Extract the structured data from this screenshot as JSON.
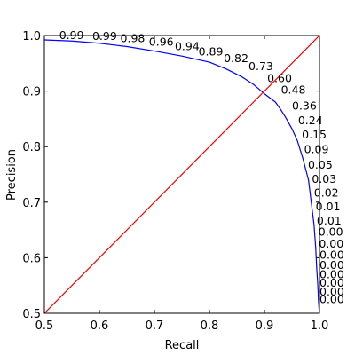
{
  "chart_data": {
    "type": "line",
    "title": "",
    "xlabel": "Recall",
    "ylabel": "Precision",
    "xlim": [
      0.5,
      1.0
    ],
    "ylim": [
      0.5,
      1.0
    ],
    "x_ticks": [
      "0.5",
      "0.6",
      "0.7",
      "0.8",
      "0.9",
      "1.0"
    ],
    "y_ticks": [
      "0.5",
      "0.6",
      "0.7",
      "0.8",
      "0.9",
      "1.0"
    ],
    "grid": false,
    "legend": "none",
    "series": [
      {
        "color": "#0000ff",
        "x": [
          0.5,
          0.55,
          0.6,
          0.65,
          0.7,
          0.75,
          0.8,
          0.83,
          0.86,
          0.88,
          0.9,
          0.92,
          0.93,
          0.94,
          0.95,
          0.96,
          0.97,
          0.98,
          0.985,
          0.99,
          0.993,
          0.995,
          0.997,
          0.998,
          0.999,
          1.0
        ],
        "y": [
          0.992,
          0.99,
          0.986,
          0.98,
          0.972,
          0.963,
          0.952,
          0.94,
          0.925,
          0.912,
          0.895,
          0.88,
          0.866,
          0.85,
          0.832,
          0.81,
          0.778,
          0.74,
          0.7,
          0.66,
          0.62,
          0.58,
          0.55,
          0.525,
          0.51,
          0.5
        ]
      },
      {
        "color": "#ff0000",
        "x": [
          0.5,
          1.0
        ],
        "y": [
          0.5,
          1.0
        ]
      }
    ],
    "threshold_labels": [
      {
        "text": "0.99",
        "x": 0.527,
        "y": 0.994
      },
      {
        "text": "0.99",
        "x": 0.587,
        "y": 0.992
      },
      {
        "text": "0.98",
        "x": 0.638,
        "y": 0.988
      },
      {
        "text": "0.96",
        "x": 0.69,
        "y": 0.982
      },
      {
        "text": "0.94",
        "x": 0.737,
        "y": 0.974
      },
      {
        "text": "0.89",
        "x": 0.78,
        "y": 0.964
      },
      {
        "text": "0.82",
        "x": 0.826,
        "y": 0.952
      },
      {
        "text": "0.73",
        "x": 0.871,
        "y": 0.938
      },
      {
        "text": "0.60",
        "x": 0.905,
        "y": 0.916
      },
      {
        "text": "0.48",
        "x": 0.93,
        "y": 0.895
      },
      {
        "text": "0.36",
        "x": 0.95,
        "y": 0.867
      },
      {
        "text": "0.24",
        "x": 0.961,
        "y": 0.84
      },
      {
        "text": "0.15",
        "x": 0.968,
        "y": 0.815
      },
      {
        "text": "0.09",
        "x": 0.972,
        "y": 0.788
      },
      {
        "text": "0.05",
        "x": 0.979,
        "y": 0.76
      },
      {
        "text": "0.03",
        "x": 0.986,
        "y": 0.735
      },
      {
        "text": "0.02",
        "x": 0.99,
        "y": 0.71
      },
      {
        "text": "0.01",
        "x": 0.993,
        "y": 0.685
      },
      {
        "text": "0.01",
        "x": 0.995,
        "y": 0.66
      },
      {
        "text": "0.00",
        "x": 0.998,
        "y": 0.64
      },
      {
        "text": "0.00",
        "x": 0.999,
        "y": 0.618
      },
      {
        "text": "0.00",
        "x": 1.0,
        "y": 0.598
      },
      {
        "text": "0.00",
        "x": 1.0,
        "y": 0.58
      },
      {
        "text": "0.00",
        "x": 1.0,
        "y": 0.563
      },
      {
        "text": "0.00",
        "x": 1.0,
        "y": 0.548
      },
      {
        "text": "0.00",
        "x": 1.0,
        "y": 0.532
      },
      {
        "text": "0.00",
        "x": 1.0,
        "y": 0.518
      }
    ]
  }
}
